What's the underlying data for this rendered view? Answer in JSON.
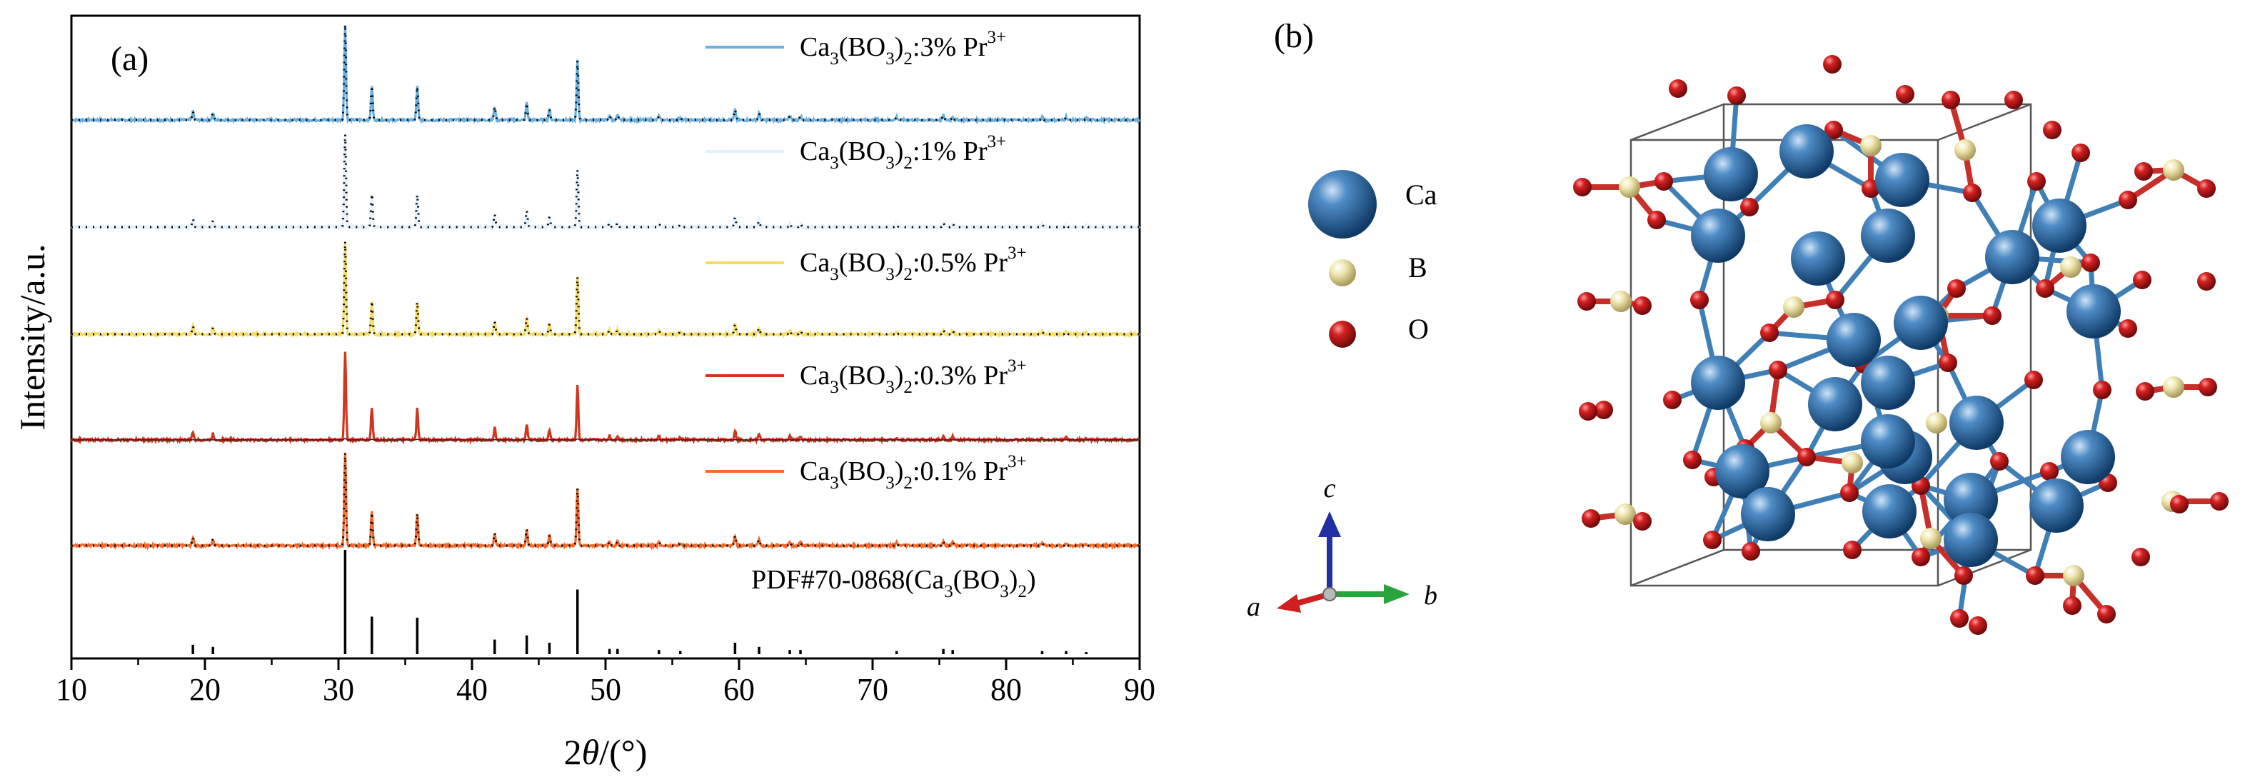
{
  "panel_a_label": "(a)",
  "panel_b_label": "(b)",
  "chart_data": {
    "type": "line",
    "xlabel_prefix": "2",
    "xlabel_var": "θ",
    "xlabel_suffix": "/(°)",
    "ylabel": "Intensity/a.u.",
    "xlim": [
      10,
      90
    ],
    "xticks": [
      "10",
      "20",
      "30",
      "40",
      "50",
      "60",
      "70",
      "80",
      "90"
    ],
    "grid": false,
    "legend_placement": "per-trace, right of peaks",
    "series": [
      {
        "name_main": "Ca",
        "name_sub1": "3",
        "name_mid": "(BO",
        "name_sub2": "3",
        "name_mid2": ")",
        "name_sub3": "2",
        "name_tail": ":3% Pr",
        "name_sup": "3+",
        "color": "#6ab0de",
        "style": "experimental + calculated"
      },
      {
        "name_main": "Ca",
        "name_sub1": "3",
        "name_mid": "(BO",
        "name_sub2": "3",
        "name_mid2": ")",
        "name_sub3": "2",
        "name_tail": ":1% Pr",
        "name_sup": "3+",
        "color": "#e3f1fb",
        "style": "experimental + calculated"
      },
      {
        "name_main": "Ca",
        "name_sub1": "3",
        "name_mid": "(BO",
        "name_sub2": "3",
        "name_mid2": ")",
        "name_sub3": "2",
        "name_tail": ":0.5% Pr",
        "name_sup": "3+",
        "color": "#f5dc67",
        "style": "experimental + calculated"
      },
      {
        "name_main": "Ca",
        "name_sub1": "3",
        "name_mid": "(BO",
        "name_sub2": "3",
        "name_mid2": ")",
        "name_sub3": "2",
        "name_tail": ":0.3% Pr",
        "name_sup": "3+",
        "color": "#d2351c",
        "style": "experimental"
      },
      {
        "name_main": "Ca",
        "name_sub1": "3",
        "name_mid": "(BO",
        "name_sub2": "3",
        "name_mid2": ")",
        "name_sub3": "2",
        "name_tail": ":0.1% Pr",
        "name_sup": "3+",
        "color": "#ef6a2c",
        "style": "experimental + calculated"
      }
    ],
    "reference": {
      "name_main": "PDF#70-0868(Ca",
      "name_sub1": "3",
      "name_mid": "(BO",
      "name_sub2": "3",
      "name_mid2": ")",
      "name_sub3": "2",
      "name_tail": ")",
      "color": "#000000"
    },
    "peaks_2theta": [
      19.1,
      20.6,
      30.5,
      32.5,
      35.9,
      41.7,
      44.1,
      45.8,
      47.9,
      50.3,
      50.9,
      54.0,
      55.6,
      59.7,
      61.5,
      63.8,
      64.6,
      71.8,
      75.3,
      76.0,
      82.7,
      84.5,
      86.0
    ],
    "peaks_rel_intensity": [
      0.09,
      0.07,
      1.0,
      0.36,
      0.35,
      0.14,
      0.18,
      0.11,
      0.62,
      0.05,
      0.05,
      0.04,
      0.03,
      0.11,
      0.07,
      0.04,
      0.04,
      0.03,
      0.05,
      0.04,
      0.03,
      0.03,
      0.02
    ]
  },
  "structure": {
    "legend": [
      {
        "label": "Ca",
        "color": "#2a6aa6"
      },
      {
        "label": "B",
        "color": "#ece3a6"
      },
      {
        "label": "O",
        "color": "#cc1f1f"
      }
    ],
    "axes": {
      "a": "a",
      "b": "b",
      "c": "c"
    },
    "axis_colors": {
      "a": "#d01f1f",
      "b": "#2aa33a",
      "c": "#1f2fa6"
    }
  }
}
